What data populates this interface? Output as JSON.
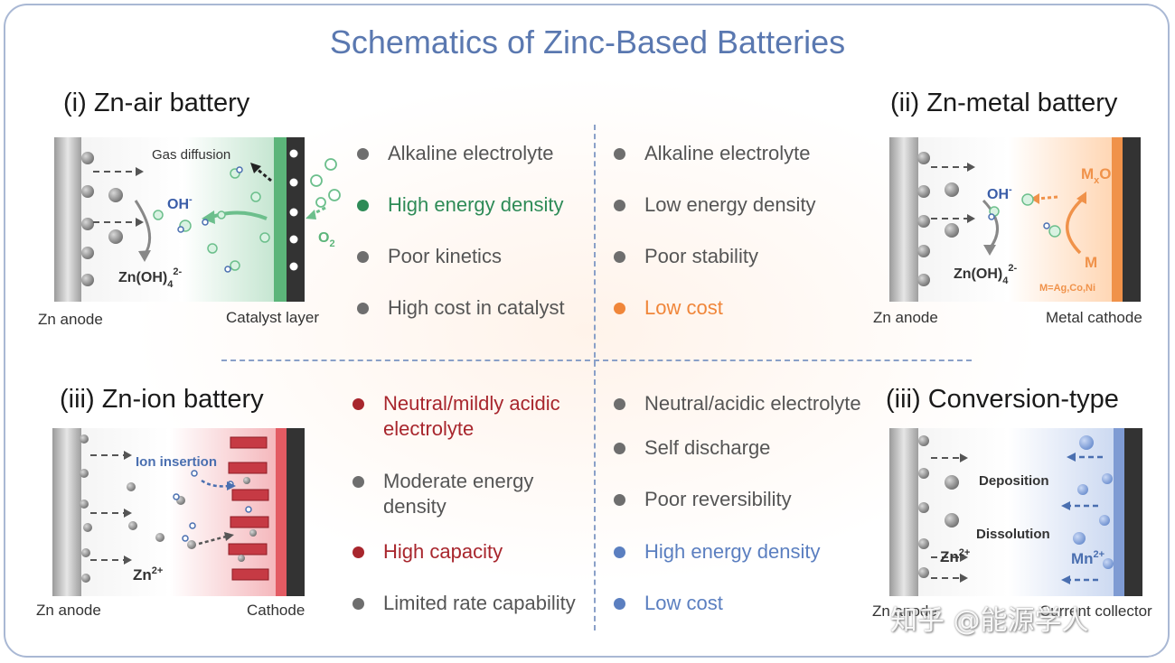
{
  "title": "Schematics of Zinc-Based Batteries",
  "panels": {
    "zn_air": {
      "title": "(i) Zn-air battery",
      "anode_label": "Zn anode",
      "cathode_label": "Catalyst layer",
      "gas_label": "Gas diffusion",
      "oh_label": "OH",
      "oh_sup": "-",
      "zincate_label": "Zn(OH)",
      "zincate_sub": "4",
      "zincate_sup": "2-",
      "o2_label": "O",
      "o2_sub": "2"
    },
    "zn_metal": {
      "title": "(ii) Zn-metal battery",
      "anode_label": "Zn anode",
      "cathode_label": "Metal cathode",
      "oh_label": "OH",
      "oh_sup": "-",
      "zincate_label": "Zn(OH)",
      "zincate_sub": "4",
      "zincate_sup": "2-",
      "mxo_label": "M",
      "mxo_sub": "x",
      "mxo_tail": "O",
      "m_label": "M",
      "m_note": "M=Ag,Co,Ni"
    },
    "zn_ion": {
      "title": "(iii) Zn-ion battery",
      "anode_label": "Zn anode",
      "cathode_label": "Cathode",
      "insertion_label": "Ion insertion",
      "ion_label": "Zn",
      "ion_sup": "2+"
    },
    "conversion": {
      "title": "(iii) Conversion-type",
      "anode_label": "Zn anode",
      "collector_label": "Current collector",
      "deposition_label": "Deposition",
      "dissolution_label": "Dissolution",
      "zn_label": "Zn",
      "zn_sup": "2+",
      "mn_label": "Mn",
      "mn_sup": "2+"
    }
  },
  "features": {
    "zn_air": [
      {
        "text": "Alkaline electrolyte",
        "color": "#6e6e6e"
      },
      {
        "text": "High energy density",
        "color": "#2e8b57"
      },
      {
        "text": "Poor kinetics",
        "color": "#6e6e6e"
      },
      {
        "text": "High cost in catalyst",
        "color": "#6e6e6e"
      }
    ],
    "zn_metal": [
      {
        "text": "Alkaline electrolyte",
        "color": "#6e6e6e"
      },
      {
        "text": "Low energy density",
        "color": "#6e6e6e"
      },
      {
        "text": "Poor stability",
        "color": "#6e6e6e"
      },
      {
        "text": "Low cost",
        "color": "#f0863a"
      }
    ],
    "zn_ion": [
      {
        "text": "Neutral/mildly acidic electrolyte",
        "color": "#a8262d"
      },
      {
        "text": "Moderate energy density",
        "color": "#6e6e6e"
      },
      {
        "text": "High capacity",
        "color": "#a8262d"
      },
      {
        "text": "Limited rate capability",
        "color": "#6e6e6e"
      }
    ],
    "conversion": [
      {
        "text": "Neutral/acidic electrolyte",
        "color": "#6e6e6e"
      },
      {
        "text": "Self discharge",
        "color": "#6e6e6e"
      },
      {
        "text": "Poor reversibility",
        "color": "#6e6e6e"
      },
      {
        "text": "High energy density",
        "color": "#5b7fc0"
      },
      {
        "text": "Low cost",
        "color": "#5b7fc0"
      }
    ]
  },
  "watermark": "知乎 @能源学人"
}
